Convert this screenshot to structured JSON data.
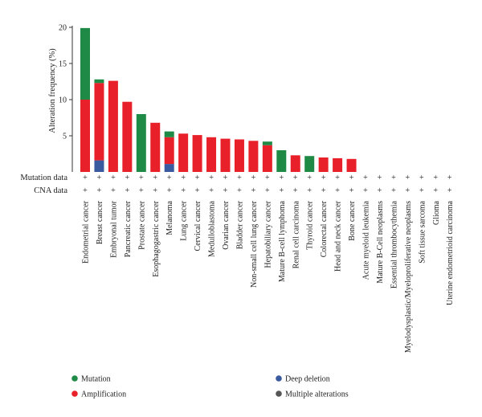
{
  "chart_data": {
    "type": "bar",
    "stacked": true,
    "ylabel": "Alteration frequency (%)",
    "ylim": [
      0,
      20
    ],
    "yticks": [
      5,
      10,
      15,
      20
    ],
    "categories": [
      "Endometrial cancer",
      "Breast cancer",
      "Embryonal tumor",
      "Pancreatic cancer",
      "Prostate cancer",
      "Esophagogastric cancer",
      "Melanoma",
      "Lung cancer",
      "Cervical cancer",
      "Medulloblastoma",
      "Ovarian cancer",
      "Bladder cancer",
      "Non-small cell lung cancer",
      "Hepatobiliary cancer",
      "Mature B-cell lymphoma",
      "Renal cell carcinoma",
      "Thyroid cancer",
      "Colorectal cancer",
      "Head and neck cancer",
      "Bone cancer",
      "Acute myeloid leukemia",
      "Mature B-Cell neoplasms",
      "Essential thrombocythemia",
      "Myelodysplastic/Myeloproliferative neoplasms",
      "Soft tissue sarcoma",
      "Glioma",
      "Uterine endometrioid carcinoma"
    ],
    "series": [
      {
        "name": "Deep deletion",
        "color": "#3a5aa0",
        "values": [
          0,
          1.6,
          0,
          0,
          0,
          0,
          1.1,
          0,
          0,
          0,
          0,
          0,
          0,
          0,
          0,
          0,
          0,
          0,
          0,
          0,
          0,
          0,
          0,
          0,
          0,
          0,
          0
        ]
      },
      {
        "name": "Amplification",
        "color": "#e8202a",
        "values": [
          10.0,
          10.7,
          12.6,
          9.7,
          0,
          6.8,
          3.7,
          5.3,
          5.1,
          4.8,
          4.6,
          4.5,
          4.3,
          3.7,
          0,
          2.3,
          0,
          2.0,
          1.9,
          1.8,
          0,
          0,
          0,
          0,
          0,
          0,
          0
        ]
      },
      {
        "name": "Mutation",
        "color": "#1f8a45",
        "values": [
          9.9,
          0.5,
          0,
          0,
          8.0,
          0,
          0.8,
          0,
          0,
          0,
          0,
          0,
          0,
          0.5,
          3.0,
          0,
          2.2,
          0,
          0,
          0,
          0,
          0,
          0,
          0,
          0,
          0,
          0
        ]
      }
    ],
    "legend": [
      {
        "name": "Mutation",
        "color": "#1f8a45"
      },
      {
        "name": "Deep deletion",
        "color": "#3a5aa0"
      },
      {
        "name": "Amplification",
        "color": "#e8202a"
      },
      {
        "name": "Multiple alterations",
        "color": "#555555"
      }
    ],
    "legend_position": "bottom",
    "rows": [
      {
        "label": "Mutation data",
        "mark": "+"
      },
      {
        "label": "CNA data",
        "mark": "+"
      }
    ],
    "grid": false
  }
}
